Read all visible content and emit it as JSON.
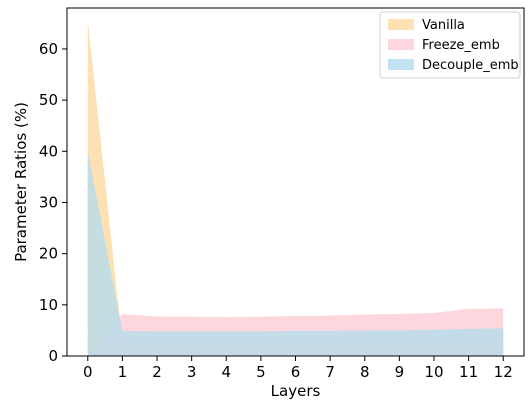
{
  "chart_data": {
    "type": "area",
    "xlabel": "Layers",
    "ylabel": "Parameter Ratios (%)",
    "x": [
      0,
      1,
      2,
      3,
      4,
      5,
      6,
      7,
      8,
      9,
      10,
      11,
      12
    ],
    "xticks": [
      "0",
      "1",
      "2",
      "3",
      "4",
      "5",
      "6",
      "7",
      "8",
      "9",
      "10",
      "11",
      "12"
    ],
    "yticks": [
      "0",
      "10",
      "20",
      "30",
      "40",
      "50",
      "60"
    ],
    "xlim": [
      -0.6,
      12.6
    ],
    "ylim": [
      0,
      68
    ],
    "legend_position": "top-right",
    "series": [
      {
        "name": "Vanilla",
        "color": "#fdd9a0",
        "values": [
          65.5,
          2.6,
          2.6,
          2.6,
          2.6,
          2.6,
          2.7,
          2.7,
          2.7,
          2.8,
          2.8,
          2.9,
          3.0
        ]
      },
      {
        "name": "Freeze_emb",
        "color": "#fccdd5",
        "values": [
          0.0,
          8.2,
          7.7,
          7.7,
          7.6,
          7.7,
          7.8,
          7.9,
          8.1,
          8.2,
          8.4,
          9.2,
          9.3
        ]
      },
      {
        "name": "Decouple_emb",
        "color": "#b5dcec",
        "values": [
          40.0,
          4.9,
          4.8,
          4.8,
          4.8,
          4.8,
          4.9,
          4.9,
          5.0,
          5.0,
          5.1,
          5.3,
          5.4
        ]
      }
    ],
    "grid": false
  }
}
